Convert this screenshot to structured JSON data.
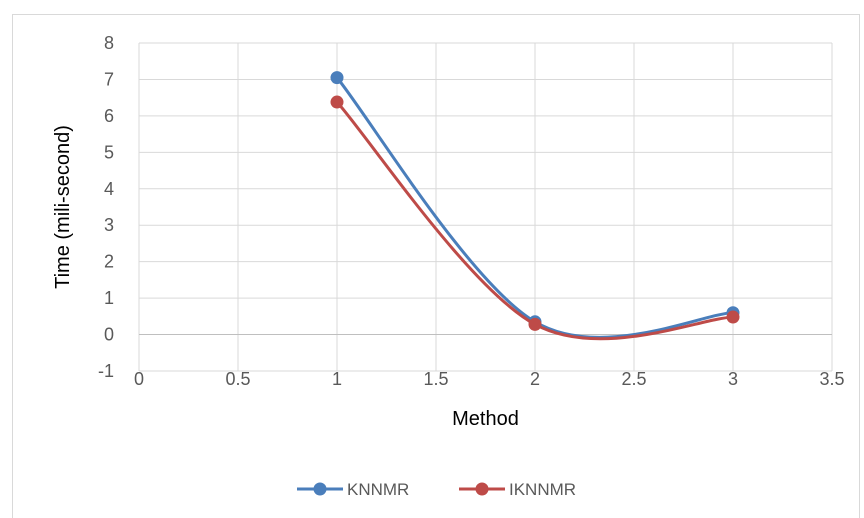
{
  "chart_data": {
    "type": "scatter",
    "title": "",
    "xlabel": "Method",
    "ylabel": "Time (mili-second)",
    "xlim": [
      0,
      3.5
    ],
    "ylim": [
      -1,
      8
    ],
    "x_ticks": [
      "0",
      "0.5",
      "1",
      "1.5",
      "2",
      "2.5",
      "3",
      "3.5"
    ],
    "y_ticks": [
      "-1",
      "0",
      "1",
      "2",
      "3",
      "4",
      "5",
      "6",
      "7",
      "8"
    ],
    "grid": true,
    "smooth_lines": true,
    "legend_position": "bottom",
    "series": [
      {
        "name": "KNNMR",
        "color": "#4a7ebb",
        "x": [
          1,
          2,
          3
        ],
        "y": [
          7.05,
          0.35,
          0.6
        ]
      },
      {
        "name": "IKNNMR",
        "color": "#be4b48",
        "x": [
          1,
          2,
          3
        ],
        "y": [
          6.38,
          0.28,
          0.48
        ]
      }
    ]
  }
}
